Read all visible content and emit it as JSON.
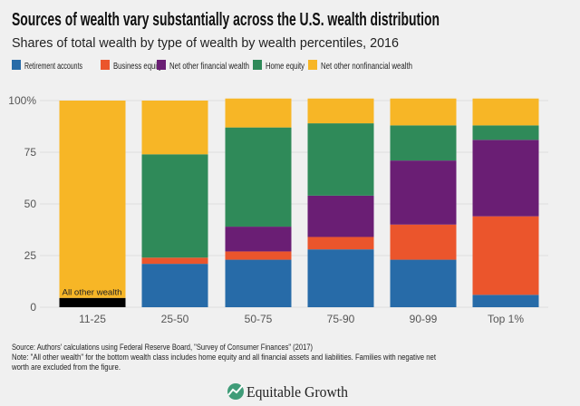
{
  "chart_data": {
    "type": "bar",
    "stacked": true,
    "title": "Sources of wealth vary substantially across the U.S. wealth distribution",
    "subtitle": "Shares of total wealth by type of wealth by wealth percentiles, 2016",
    "xlabel": "",
    "ylabel": "",
    "ylim": [
      0,
      100
    ],
    "yticks": [
      "0",
      "25",
      "50",
      "75",
      "100%"
    ],
    "ytick_values": [
      0,
      25,
      50,
      75,
      100
    ],
    "grid": true,
    "legend_position": "top",
    "categories": [
      "11-25",
      "25-50",
      "50-75",
      "75-90",
      "90-99",
      "Top 1%"
    ],
    "series": [
      {
        "name": "Retirement accounts",
        "color": "#276ba8",
        "values": [
          0,
          21,
          23,
          28,
          23,
          6
        ]
      },
      {
        "name": "Business equity",
        "color": "#eb552c",
        "values": [
          0,
          3,
          4,
          6,
          17,
          38
        ]
      },
      {
        "name": "Net other financial wealth",
        "color": "#6a1e74",
        "values": [
          0,
          0,
          12,
          20,
          31,
          37
        ]
      },
      {
        "name": "Home equity",
        "color": "#2f8a59",
        "values": [
          0,
          50,
          48,
          35,
          17,
          7
        ]
      },
      {
        "name": "Net other nonfinancial wealth",
        "color": "#f7b626",
        "values": [
          95.5,
          26,
          14,
          12,
          13,
          13
        ]
      }
    ],
    "extra_series": {
      "name": "All other wealth",
      "color": "#000000",
      "category": "11-25",
      "value": 4.5
    },
    "annotation": "All other wealth"
  },
  "footer": {
    "source": "Source: Authors' calculations using Federal Reserve Board, \"Survey of Consumer Finances\" (2017)",
    "note_line1": "Note: \"All other wealth\" for the bottom wealth class includes home equity and all financial assets and liabilities. Families with negative net",
    "note_line2": "worth are excluded from the figure.",
    "logo_text": "Equitable Growth"
  }
}
